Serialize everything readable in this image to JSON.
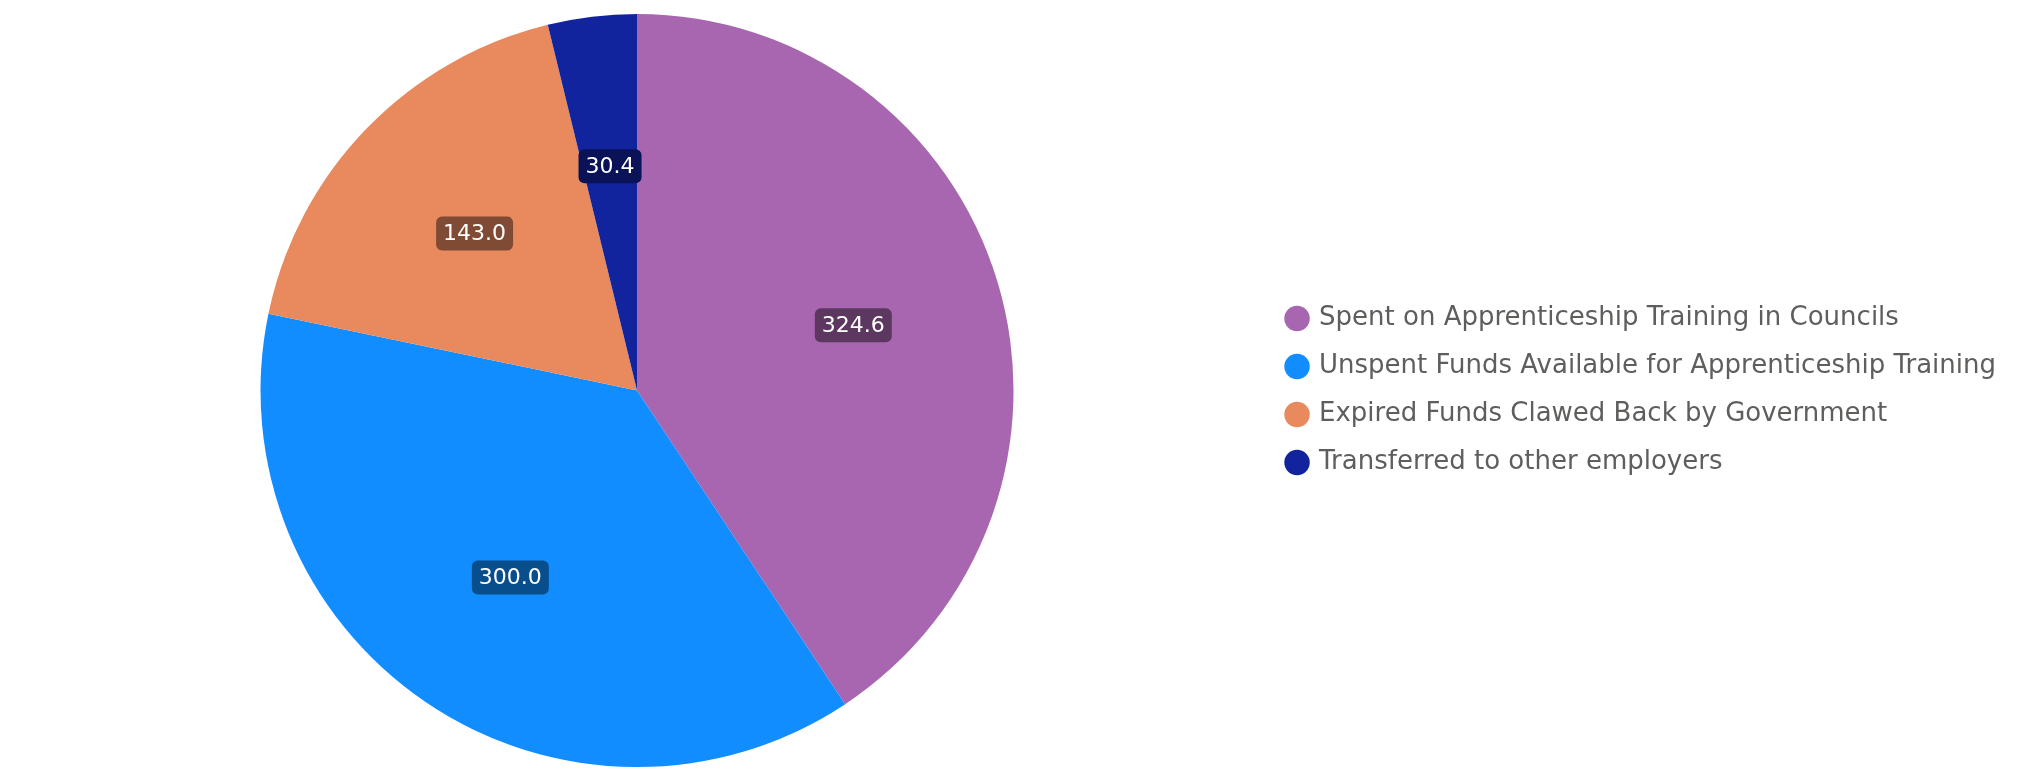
{
  "chart_data": {
    "type": "pie",
    "categories": [
      "Spent on Apprenticeship Training in Councils",
      "Unspent Funds Available for Apprenticeship Training",
      "Expired Funds Clawed Back by Government",
      "Transferred to other employers"
    ],
    "values": [
      324.6,
      300.0,
      143.0,
      30.4
    ],
    "value_labels": [
      "324.6",
      "300.0",
      "143.0",
      "30.4"
    ],
    "colors": [
      "#a866b0",
      "#118dff",
      "#e8895e",
      "#12239e"
    ],
    "legend": "right"
  }
}
